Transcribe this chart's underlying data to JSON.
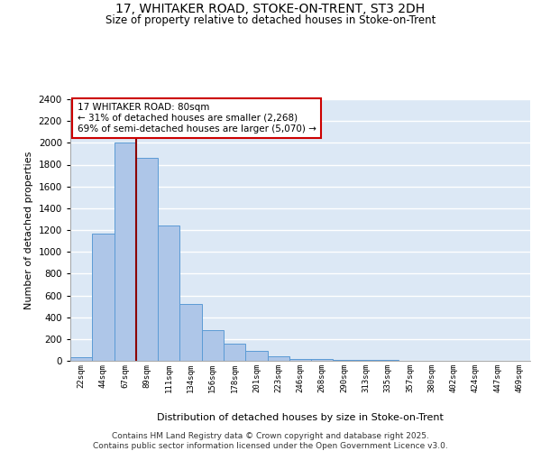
{
  "title1": "17, WHITAKER ROAD, STOKE-ON-TRENT, ST3 2DH",
  "title2": "Size of property relative to detached houses in Stoke-on-Trent",
  "xlabel": "Distribution of detached houses by size in Stoke-on-Trent",
  "ylabel": "Number of detached properties",
  "categories": [
    "22sqm",
    "44sqm",
    "67sqm",
    "89sqm",
    "111sqm",
    "134sqm",
    "156sqm",
    "178sqm",
    "201sqm",
    "223sqm",
    "246sqm",
    "268sqm",
    "290sqm",
    "313sqm",
    "335sqm",
    "357sqm",
    "380sqm",
    "402sqm",
    "424sqm",
    "447sqm",
    "469sqm"
  ],
  "values": [
    30,
    1170,
    2000,
    1860,
    1240,
    520,
    285,
    155,
    90,
    40,
    20,
    15,
    10,
    5,
    5,
    4,
    3,
    3,
    3,
    3,
    3
  ],
  "bar_color": "#aec6e8",
  "bar_edge_color": "#5b9bd5",
  "background_color": "#dce8f5",
  "grid_color": "#ffffff",
  "red_line_x": 2.5,
  "annotation_text": "17 WHITAKER ROAD: 80sqm\n← 31% of detached houses are smaller (2,268)\n69% of semi-detached houses are larger (5,070) →",
  "annotation_box_color": "#ffffff",
  "annotation_box_edge": "#cc0000",
  "ylim": [
    0,
    2400
  ],
  "yticks": [
    0,
    200,
    400,
    600,
    800,
    1000,
    1200,
    1400,
    1600,
    1800,
    2000,
    2200,
    2400
  ],
  "footnote1": "Contains HM Land Registry data © Crown copyright and database right 2025.",
  "footnote2": "Contains public sector information licensed under the Open Government Licence v3.0."
}
